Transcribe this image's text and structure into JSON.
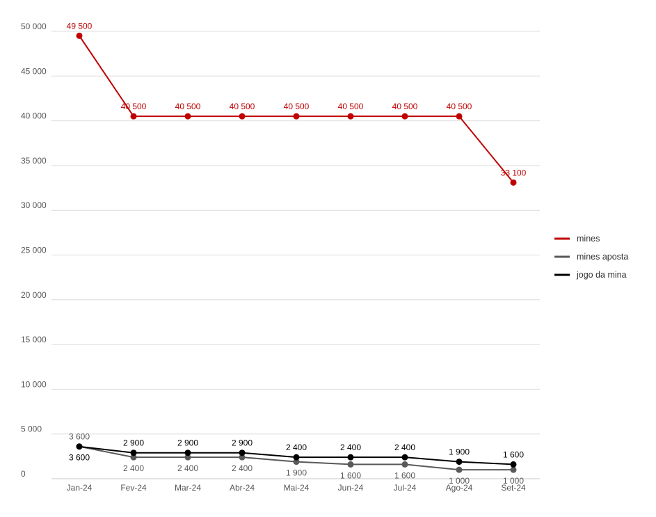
{
  "chart_data": {
    "type": "line",
    "title": "",
    "xlabel": "",
    "ylabel": "",
    "categories": [
      "Jan-24",
      "Fev-24",
      "Mar-24",
      "Abr-24",
      "Mai-24",
      "Jun-24",
      "Jul-24",
      "Ago-24",
      "Set-24"
    ],
    "ylim": [
      0,
      50000
    ],
    "yticks": [
      0,
      5000,
      10000,
      15000,
      20000,
      25000,
      30000,
      35000,
      40000,
      45000,
      50000
    ],
    "ytick_labels": [
      "0",
      "5 000",
      "10 000",
      "15 000",
      "20 000",
      "25 000",
      "30 000",
      "35 000",
      "40 000",
      "45 000",
      "50 000"
    ],
    "grid": true,
    "legend_position": "right",
    "series": [
      {
        "name": "mines",
        "color": "#c00000",
        "values": [
          49500,
          40500,
          40500,
          40500,
          40500,
          40500,
          40500,
          40500,
          33100
        ],
        "labels": [
          "49 500",
          "40 500",
          "40 500",
          "40 500",
          "40 500",
          "40 500",
          "40 500",
          "40 500",
          "33 100"
        ],
        "label_position": "above"
      },
      {
        "name": "mines aposta",
        "color": "#595959",
        "values": [
          3600,
          2400,
          2400,
          2400,
          1900,
          1600,
          1600,
          1000,
          1000
        ],
        "labels": [
          "3 600",
          "2 400",
          "2 400",
          "2 400",
          "1 900",
          "1 600",
          "1 600",
          "1 000",
          "1 000"
        ],
        "label_position": "below-except-first"
      },
      {
        "name": "jogo da mina",
        "color": "#000000",
        "values": [
          3600,
          2900,
          2900,
          2900,
          2400,
          2400,
          2400,
          1900,
          1600
        ],
        "labels": [
          "3 600",
          "2 900",
          "2 900",
          "2 900",
          "2 400",
          "2 400",
          "2 400",
          "1 900",
          "1 600"
        ],
        "label_position": "above-except-first"
      }
    ]
  }
}
